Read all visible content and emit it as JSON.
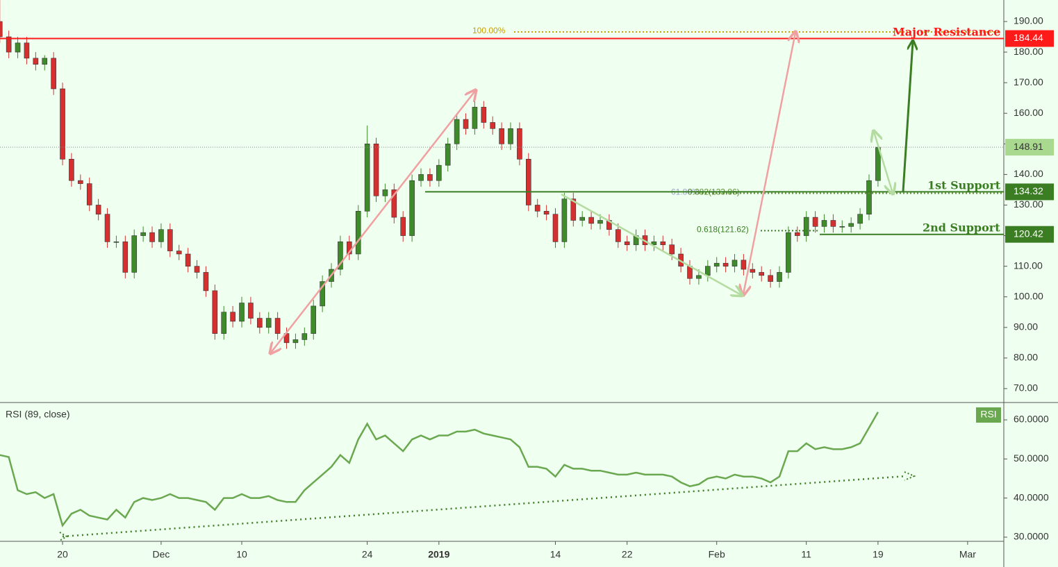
{
  "chart_data": [
    {
      "type": "candlestick",
      "x": [
        -7,
        -6,
        -5,
        -4,
        -3,
        -2,
        -1,
        0,
        1,
        2,
        3,
        4,
        5,
        6,
        7,
        8,
        9,
        10,
        11,
        12,
        13,
        14,
        15,
        16,
        17,
        18,
        19,
        20,
        21,
        22,
        23,
        24,
        25,
        26,
        27,
        28,
        29,
        30,
        31,
        32,
        33,
        34,
        35,
        36,
        37,
        38,
        39,
        40,
        41,
        42,
        43,
        44,
        45,
        46,
        47,
        48,
        49,
        50,
        51,
        52,
        53,
        54,
        55,
        56,
        57,
        58,
        59,
        60,
        61,
        62,
        63,
        64,
        65,
        66,
        67,
        68,
        69,
        70,
        71,
        72,
        73,
        74,
        75,
        76,
        77,
        78,
        79,
        80,
        81,
        82,
        83,
        84,
        85,
        86,
        87,
        88,
        89,
        90,
        91
      ],
      "open": [
        190,
        185,
        180,
        183,
        178,
        176,
        178,
        168,
        145,
        138,
        137,
        130,
        127,
        118,
        118,
        108,
        120,
        121,
        118,
        122,
        115,
        114,
        110,
        108,
        102,
        88,
        95,
        92,
        98,
        93,
        90,
        93,
        88,
        85,
        86,
        88,
        97,
        105,
        109,
        118,
        114,
        128,
        150,
        133,
        135,
        126,
        120,
        138,
        140,
        138,
        143,
        150,
        158,
        155,
        162,
        157,
        155,
        150,
        155,
        145,
        130,
        128,
        127,
        118,
        132,
        125,
        126,
        124,
        125,
        122,
        118,
        117,
        120,
        117,
        118,
        117,
        114,
        110,
        106,
        107,
        110,
        111,
        110,
        112,
        109,
        108,
        107,
        105,
        108,
        121,
        120,
        126,
        123,
        125,
        123,
        123,
        124,
        127,
        138
      ],
      "high": [
        197,
        187,
        185,
        185,
        180,
        179,
        180,
        170,
        147,
        140,
        139,
        132,
        129,
        120,
        120,
        122,
        123,
        123,
        124,
        124,
        117,
        116,
        112,
        110,
        104,
        97,
        97,
        100,
        100,
        95,
        95,
        95,
        90,
        88,
        90,
        99,
        107,
        111,
        120,
        120,
        130,
        156,
        152,
        137,
        137,
        128,
        140,
        142,
        142,
        145,
        152,
        160,
        160,
        165,
        164,
        159,
        157,
        157,
        157,
        147,
        132,
        130,
        129,
        134,
        134,
        128,
        128,
        127,
        127,
        124,
        120,
        122,
        122,
        120,
        120,
        119,
        116,
        112,
        109,
        112,
        113,
        113,
        114,
        114,
        111,
        110,
        109,
        110,
        123,
        123,
        128,
        128,
        127,
        127,
        125,
        126,
        129,
        140,
        150
      ],
      "low": [
        183,
        178,
        178,
        176,
        174,
        174,
        166,
        143,
        136,
        135,
        128,
        125,
        116,
        116,
        106,
        106,
        118,
        116,
        116,
        113,
        112,
        108,
        106,
        100,
        86,
        86,
        90,
        90,
        91,
        88,
        88,
        86,
        83,
        83,
        84,
        86,
        95,
        103,
        107,
        112,
        112,
        126,
        131,
        131,
        124,
        118,
        118,
        136,
        136,
        136,
        141,
        148,
        153,
        153,
        155,
        153,
        148,
        148,
        143,
        128,
        126,
        125,
        116,
        116,
        123,
        123,
        122,
        122,
        120,
        116,
        115,
        115,
        115,
        115,
        115,
        112,
        108,
        104,
        104,
        105,
        108,
        108,
        108,
        107,
        106,
        105,
        103,
        103,
        106,
        118,
        118,
        121,
        121,
        121,
        121,
        121,
        122,
        125,
        136
      ],
      "close": [
        185,
        180,
        183,
        178,
        176,
        178,
        168,
        145,
        138,
        137,
        130,
        127,
        118,
        118,
        108,
        120,
        121,
        118,
        122,
        115,
        114,
        110,
        108,
        102,
        88,
        95,
        92,
        98,
        93,
        90,
        93,
        88,
        85,
        86,
        88,
        97,
        105,
        109,
        118,
        114,
        128,
        150,
        133,
        135,
        126,
        120,
        138,
        140,
        138,
        143,
        150,
        158,
        155,
        162,
        157,
        155,
        150,
        155,
        145,
        130,
        128,
        127,
        118,
        132,
        125,
        126,
        124,
        125,
        122,
        118,
        117,
        120,
        117,
        118,
        117,
        114,
        110,
        106,
        107,
        110,
        111,
        110,
        112,
        109,
        108,
        107,
        105,
        108,
        121,
        120,
        126,
        123,
        125,
        123,
        123,
        124,
        127,
        138,
        148.91
      ],
      "up_color": "#3f8a2a",
      "down_color": "#d62f2f",
      "xlim": [
        -6.98,
        105.04
      ],
      "xticks": [
        {
          "value": 0,
          "label": "20"
        },
        {
          "value": 11,
          "label": "Dec"
        },
        {
          "value": 20,
          "label": "10"
        },
        {
          "value": 34,
          "label": "24"
        },
        {
          "value": 42,
          "label": "2019"
        },
        {
          "value": 55,
          "label": "14"
        },
        {
          "value": 63,
          "label": "22"
        },
        {
          "value": 73,
          "label": "Feb"
        },
        {
          "value": 83,
          "label": "11"
        },
        {
          "value": 91,
          "label": "19"
        },
        {
          "value": 101,
          "label": "Mar"
        }
      ],
      "ylim": [
        65.45,
        197.03
      ],
      "yticks": [
        {
          "value": 70,
          "label": "70.00"
        },
        {
          "value": 80,
          "label": "80.00"
        },
        {
          "value": 90,
          "label": "90.00"
        },
        {
          "value": 100,
          "label": "100.00"
        },
        {
          "value": 110,
          "label": "110.00"
        },
        {
          "value": 120,
          "label": "120.00"
        },
        {
          "value": 130,
          "label": "130.00"
        },
        {
          "value": 140,
          "label": "140.00"
        },
        {
          "value": 150,
          "label": "150.00"
        },
        {
          "value": 160,
          "label": "160.00"
        },
        {
          "value": 170,
          "label": "170.00"
        },
        {
          "value": 180,
          "label": "180.00"
        },
        {
          "value": 190,
          "label": "190.00"
        }
      ],
      "levels": [
        {
          "label": "Major Resistance",
          "value": 184.44,
          "color": "#ff1a1a"
        },
        {
          "label": "1st Support",
          "value": 134.32,
          "color": "#3b7d23"
        },
        {
          "label": "2nd Support",
          "value": 120.42,
          "color": "#3b7d23"
        }
      ],
      "last_price": 148.91,
      "fib": [
        {
          "label": "100.00%",
          "value": 186.6,
          "color": "#c8a000"
        },
        {
          "label": "61.80%",
          "value": 133.86,
          "color": "#9aa3c8"
        },
        {
          "label": "0.382(133.86)",
          "value": 133.86,
          "color": "#5f8f35"
        },
        {
          "label": "0.618(121.62)",
          "value": 121.62,
          "color": "#3b7d23"
        }
      ]
    },
    {
      "type": "line",
      "title": "RSI (89, close)",
      "badge": "RSI",
      "color": "#6aa84f",
      "x": [
        -7,
        -6,
        -5,
        -4,
        -3,
        -2,
        -1,
        0,
        1,
        2,
        3,
        4,
        5,
        6,
        7,
        8,
        9,
        10,
        11,
        12,
        13,
        14,
        15,
        16,
        17,
        18,
        19,
        20,
        21,
        22,
        23,
        24,
        25,
        26,
        27,
        28,
        29,
        30,
        31,
        32,
        33,
        34,
        35,
        36,
        37,
        38,
        39,
        40,
        41,
        42,
        43,
        44,
        45,
        46,
        47,
        48,
        49,
        50,
        51,
        52,
        53,
        54,
        55,
        56,
        57,
        58,
        59,
        60,
        61,
        62,
        63,
        64,
        65,
        66,
        67,
        68,
        69,
        70,
        71,
        72,
        73,
        74,
        75,
        76,
        77,
        78,
        79,
        80,
        81,
        82,
        83,
        84,
        85,
        86,
        87,
        88,
        89,
        90,
        91
      ],
      "values": [
        51,
        50.5,
        42,
        41,
        41.5,
        40,
        41,
        33,
        36,
        37,
        35.5,
        35,
        34.5,
        37,
        35,
        39,
        40,
        39.5,
        40,
        41,
        40,
        40,
        39.5,
        39,
        37,
        40,
        40,
        41,
        40,
        40,
        40.5,
        39.5,
        39,
        39,
        42,
        44,
        46,
        48,
        51,
        49,
        55,
        59,
        55,
        56,
        54,
        52,
        55,
        56,
        55,
        56,
        56,
        57,
        57,
        57.5,
        56.5,
        56,
        55.5,
        55,
        53,
        48,
        48,
        47.5,
        45.5,
        48.5,
        47.5,
        47.5,
        47,
        47,
        46.5,
        46,
        46,
        46.5,
        46,
        46,
        46,
        45.5,
        44,
        43,
        43.5,
        45,
        45.5,
        45,
        46,
        45.5,
        45.5,
        45,
        44,
        45.5,
        52,
        52,
        54,
        52.5,
        53,
        52.5,
        52.5,
        53,
        54,
        58,
        62
      ],
      "ylim": [
        28.93,
        64.26
      ],
      "yticks": [
        {
          "value": 30,
          "label": "30.0000"
        },
        {
          "value": 40,
          "label": "40.0000"
        },
        {
          "value": 50,
          "label": "50.0000"
        },
        {
          "value": 60,
          "label": "60.0000"
        }
      ]
    }
  ]
}
